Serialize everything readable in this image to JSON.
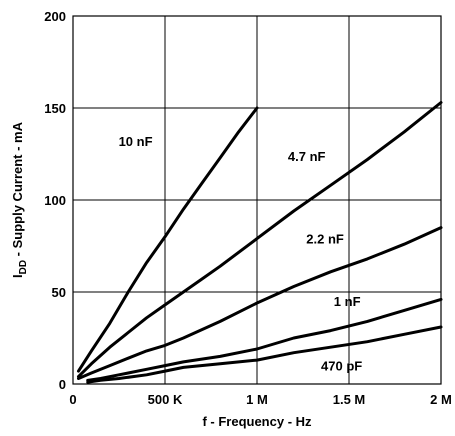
{
  "chart_data": {
    "type": "line",
    "xlabel": "f - Frequency - Hz",
    "ylabel": {
      "main": "I",
      "sub": "DD",
      "rest": " - Supply Current - mA"
    },
    "xlim": [
      0,
      2000000
    ],
    "ylim": [
      0,
      200
    ],
    "grid": true,
    "x_ticks": [
      {
        "value": 0,
        "label": "0"
      },
      {
        "value": 500000,
        "label": "500 K"
      },
      {
        "value": 1000000,
        "label": "1 M"
      },
      {
        "value": 1500000,
        "label": "1.5 M"
      },
      {
        "value": 2000000,
        "label": "2 M"
      }
    ],
    "y_ticks": [
      {
        "value": 0,
        "label": "0"
      },
      {
        "value": 50,
        "label": "50"
      },
      {
        "value": 100,
        "label": "100"
      },
      {
        "value": 150,
        "label": "150"
      },
      {
        "value": 200,
        "label": "200"
      }
    ],
    "series": [
      {
        "name": "10 nF",
        "label_pos": [
          340000,
          132
        ],
        "points": [
          [
            30000,
            7
          ],
          [
            100000,
            18
          ],
          [
            200000,
            33
          ],
          [
            300000,
            50
          ],
          [
            400000,
            66
          ],
          [
            500000,
            80
          ],
          [
            600000,
            95
          ],
          [
            700000,
            109
          ],
          [
            800000,
            123
          ],
          [
            900000,
            137
          ],
          [
            1000000,
            150
          ]
        ]
      },
      {
        "name": "4.7 nF",
        "label_pos": [
          1270000,
          124
        ],
        "points": [
          [
            30000,
            4
          ],
          [
            100000,
            11
          ],
          [
            200000,
            20
          ],
          [
            300000,
            28
          ],
          [
            400000,
            36
          ],
          [
            500000,
            43
          ],
          [
            600000,
            50
          ],
          [
            700000,
            57
          ],
          [
            800000,
            64
          ],
          [
            1000000,
            79
          ],
          [
            1200000,
            94
          ],
          [
            1400000,
            108
          ],
          [
            1600000,
            122
          ],
          [
            1800000,
            137
          ],
          [
            2000000,
            153
          ]
        ]
      },
      {
        "name": "2.2 nF",
        "label_pos": [
          1370000,
          79
        ],
        "points": [
          [
            30000,
            3
          ],
          [
            100000,
            6
          ],
          [
            200000,
            10
          ],
          [
            300000,
            14
          ],
          [
            400000,
            18
          ],
          [
            500000,
            21
          ],
          [
            600000,
            25
          ],
          [
            800000,
            34
          ],
          [
            1000000,
            44
          ],
          [
            1200000,
            53
          ],
          [
            1400000,
            61
          ],
          [
            1600000,
            68
          ],
          [
            1800000,
            76
          ],
          [
            2000000,
            85
          ]
        ]
      },
      {
        "name": "1 nF",
        "label_pos": [
          1490000,
          45
        ],
        "points": [
          [
            80000,
            2
          ],
          [
            150000,
            3
          ],
          [
            250000,
            5
          ],
          [
            300000,
            6
          ],
          [
            400000,
            8
          ],
          [
            500000,
            10
          ],
          [
            600000,
            12
          ],
          [
            800000,
            15
          ],
          [
            1000000,
            19
          ],
          [
            1200000,
            25
          ],
          [
            1400000,
            29
          ],
          [
            1600000,
            34
          ],
          [
            1800000,
            40
          ],
          [
            2000000,
            46
          ]
        ]
      },
      {
        "name": "470 pF",
        "label_pos": [
          1460000,
          10
        ],
        "points": [
          [
            80000,
            1
          ],
          [
            150000,
            2
          ],
          [
            250000,
            3
          ],
          [
            400000,
            5
          ],
          [
            500000,
            7
          ],
          [
            600000,
            9
          ],
          [
            800000,
            11
          ],
          [
            1000000,
            13
          ],
          [
            1200000,
            17
          ],
          [
            1400000,
            20
          ],
          [
            1600000,
            23
          ],
          [
            1800000,
            27
          ],
          [
            2000000,
            31
          ]
        ]
      }
    ]
  }
}
